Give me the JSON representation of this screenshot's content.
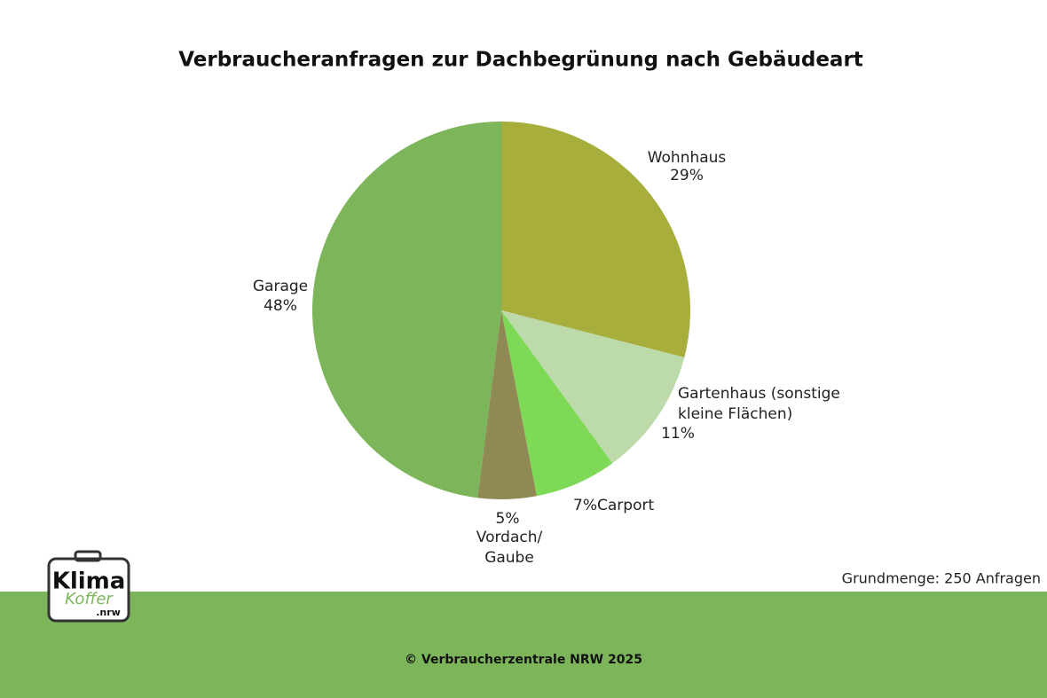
{
  "chart_data": {
    "type": "pie",
    "title": "Verbraucheranfragen zur Dachbegrünung nach Gebäudeart",
    "categories": [
      "Wohnhaus",
      "Gartenhaus (sonstige kleine Flächen)",
      "Carport",
      "Vordach/ Gaube",
      "Garage"
    ],
    "values": [
      29,
      11,
      7,
      5,
      48
    ],
    "value_labels": [
      "29%",
      "11%",
      "7%",
      "5%",
      "48%"
    ],
    "colors": [
      "#a8ae3c",
      "#bddaab",
      "#7ed957",
      "#8f8a53",
      "#7db65a"
    ],
    "note": "Grundmenge: 250 Anfragen"
  },
  "footer": {
    "copyright": "© Verbraucherzentrale NRW 2025"
  },
  "logo": {
    "line1": "Klima",
    "line2": "Koffer",
    "line3": ".nrw"
  }
}
